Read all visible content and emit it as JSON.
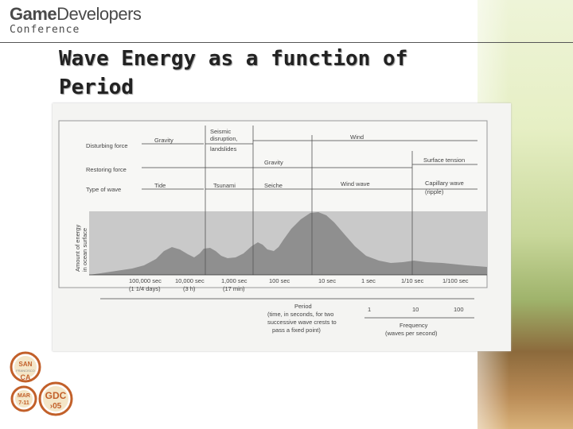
{
  "logo": {
    "game": "Game",
    "developers": "Developers",
    "conference": "Conference"
  },
  "slide": {
    "title_line1": "Wave Energy as a function of",
    "title_line2": "Period"
  },
  "diagram": {
    "row_labels": [
      "Disturbing force",
      "Restoring force",
      "Type of wave"
    ],
    "disturbing": {
      "gravity": "Gravity",
      "seismic_1": "Seismic",
      "seismic_2": "disruption,",
      "seismic_3": "landslides",
      "wind": "Wind"
    },
    "restoring": {
      "gravity": "Gravity",
      "surface_tension": "Surface tension"
    },
    "wave_types": {
      "tide": "Tide",
      "tsunami": "Tsunami",
      "seiche": "Seiche",
      "wind_wave": "Wind wave",
      "capillary_1": "Capillary wave",
      "capillary_2": "(ripple)"
    },
    "y_axis_1": "Amount of energy",
    "y_axis_2": "in ocean surface",
    "period_ticks": [
      {
        "l1": "100,000 sec",
        "l2": "(1 1/4 days)"
      },
      {
        "l1": "10,000 sec",
        "l2": "(3 h)"
      },
      {
        "l1": "1,000 sec",
        "l2": "(17 min)"
      },
      {
        "l1": "100 sec",
        "l2": ""
      },
      {
        "l1": "10 sec",
        "l2": ""
      },
      {
        "l1": "1 sec",
        "l2": ""
      },
      {
        "l1": "1/10 sec",
        "l2": ""
      },
      {
        "l1": "1/100 sec",
        "l2": ""
      }
    ],
    "period_label": [
      "Period",
      "(time, in seconds, for two",
      "successive wave crests to",
      "pass a fixed point)"
    ],
    "freq_ticks": [
      "1",
      "10",
      "100"
    ],
    "frequency_label": [
      "Frequency",
      "(waves per second)"
    ]
  },
  "badge": {
    "san": "SAN",
    "francisco": "FRANCISCO",
    "ca": "CA",
    "mar": "MAR",
    "dates": "7-11",
    "gdc": "GDC",
    "year": "›05"
  },
  "colors": {
    "energy_fill": "#8f8f8f",
    "band": "#c9c9c9",
    "badge_ring": "#c2602a"
  }
}
